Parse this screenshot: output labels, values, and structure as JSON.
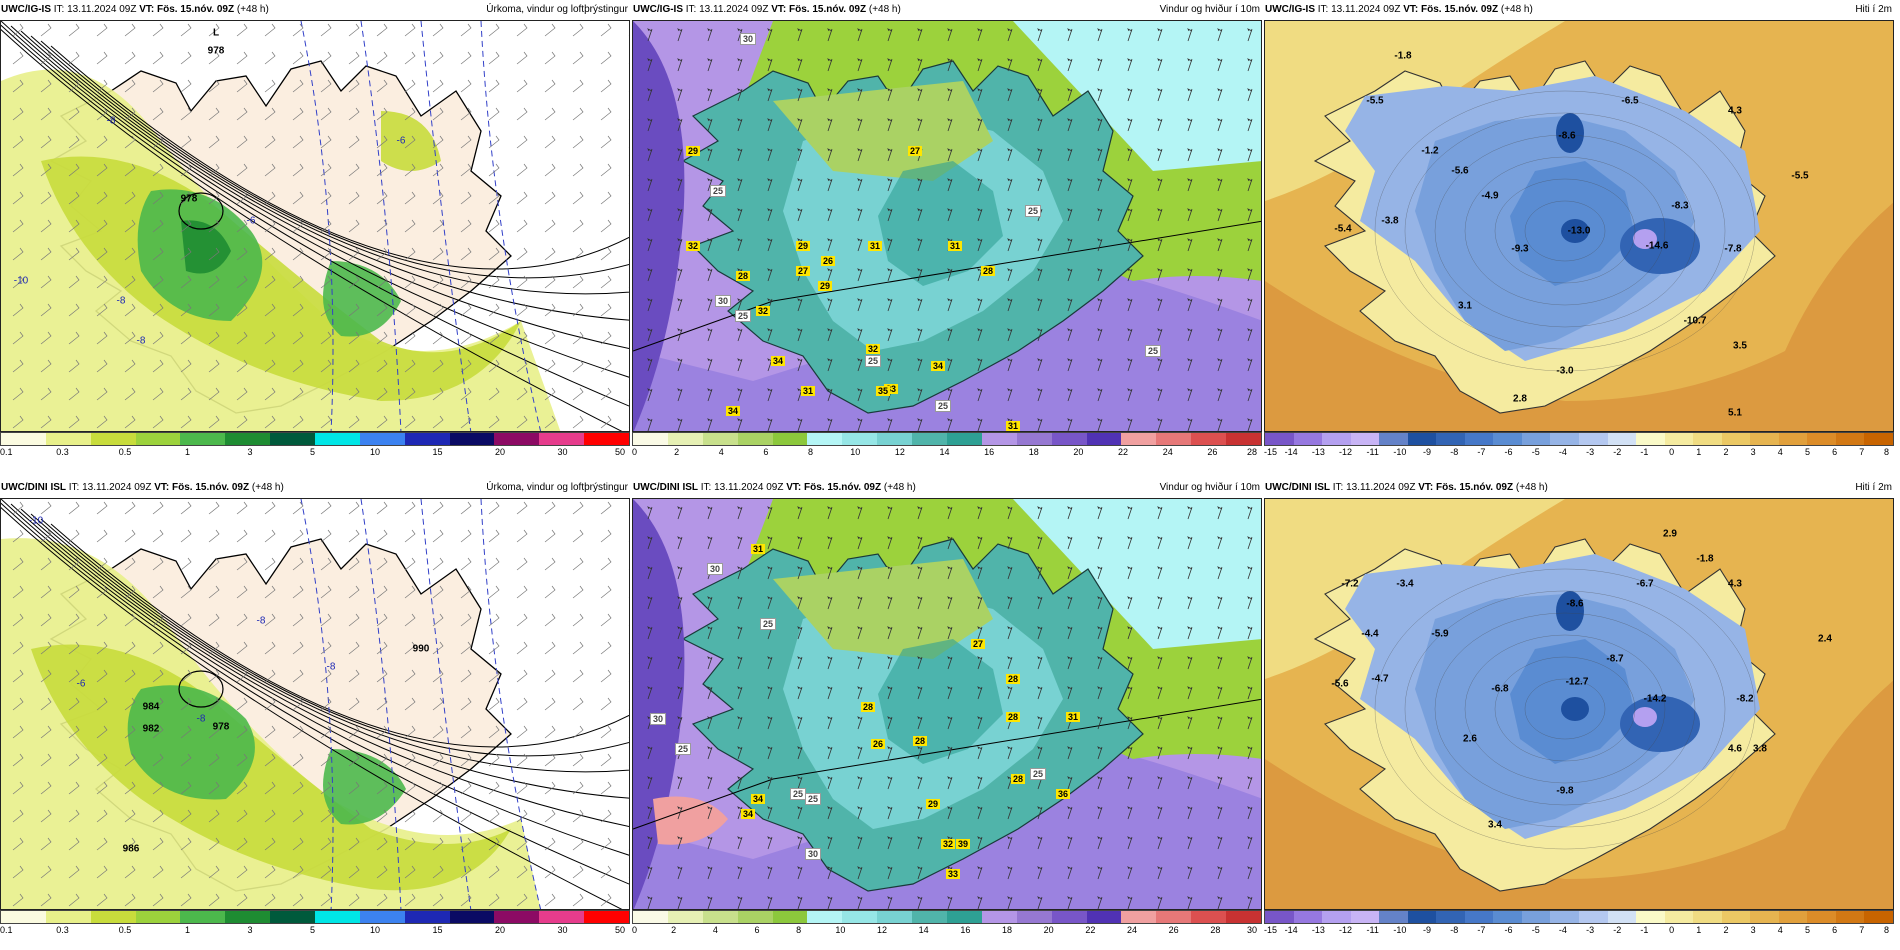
{
  "panels": [
    {
      "id": "p1",
      "model": "UWC/IG-IS",
      "it_label": "IT:",
      "it": "13.11.2024 09Z",
      "vt_label": "VT:",
      "vt": "Fös. 15.nóv. 09Z",
      "lead": "(+48 h)",
      "title": "Úrkoma, vindur og loftþrýstingur",
      "legend": {
        "colors": [
          "#fbfbe0",
          "#e8f08a",
          "#c8dc3c",
          "#9cd23c",
          "#4cb84c",
          "#1e8c32",
          "#005a3c",
          "#00e6e6",
          "#3c82f0",
          "#1e28b4",
          "#0a0a64",
          "#8c0a64",
          "#e63c8c",
          "#ff0000"
        ],
        "ticks": [
          "0.1",
          "0.3",
          "0.5",
          "1",
          "3",
          "5",
          "10",
          "15",
          "20",
          "30",
          "50"
        ]
      },
      "labels": [
        "L",
        "978",
        "978",
        "-8",
        "-8",
        "-8",
        "-6",
        "-6",
        "-10"
      ]
    },
    {
      "id": "p2",
      "model": "UWC/IG-IS",
      "it_label": "IT:",
      "it": "13.11.2024 09Z",
      "vt_label": "VT:",
      "vt": "Fös. 15.nóv. 09Z",
      "lead": "(+48 h)",
      "title": "Vindur og hviður í 10m",
      "legend": {
        "colors": [
          "#fafae6",
          "#e6f0b4",
          "#c8e08c",
          "#aad264",
          "#8cc83c",
          "#b4f5f5",
          "#96e6e6",
          "#78d2d2",
          "#50b4aa",
          "#2ea094",
          "#b496e6",
          "#9678d2",
          "#7856c8",
          "#5032b4",
          "#f0a0a0",
          "#e67878",
          "#dc5050",
          "#c83232"
        ],
        "ticks": [
          "0",
          "2",
          "4",
          "6",
          "8",
          "10",
          "12",
          "14",
          "16",
          "18",
          "20",
          "22",
          "24",
          "26",
          "28"
        ]
      },
      "labels_yellow": [
        "29",
        "32",
        "28",
        "32",
        "34",
        "31",
        "27",
        "29",
        "26",
        "29",
        "31",
        "31",
        "28",
        "32",
        "33",
        "35",
        "31",
        "34",
        "27",
        "34"
      ],
      "labels_white": [
        "30",
        "25",
        "30",
        "25",
        "25",
        "25",
        "25",
        "25"
      ]
    },
    {
      "id": "p3",
      "model": "UWC/IG-IS",
      "it_label": "IT:",
      "it": "13.11.2024 09Z",
      "vt_label": "VT:",
      "vt": "Fös. 15.nóv. 09Z",
      "lead": "(+48 h)",
      "title": "Hiti í 2m",
      "legend": {
        "colors": [
          "#7856c8",
          "#9678e0",
          "#b4a0f0",
          "#c8b4f5",
          "#6482c8",
          "#1e50a0",
          "#3264b4",
          "#4678c8",
          "#5a8cd2",
          "#78a0dc",
          "#96b4e6",
          "#b4c8f0",
          "#d2e1f5",
          "#fafac8",
          "#f5eba0",
          "#f0dc82",
          "#ebc864",
          "#e6b450",
          "#e1a03c",
          "#dc8c28",
          "#d27814",
          "#c86400"
        ],
        "ticks": [
          "-15",
          "-14",
          "-13",
          "-12",
          "-11",
          "-10",
          "-9",
          "-8",
          "-7",
          "-6",
          "-5",
          "-4",
          "-3",
          "-2",
          "-1",
          "0",
          "1",
          "2",
          "3",
          "4",
          "5",
          "6",
          "7",
          "8"
        ]
      },
      "labels": [
        "-1.8",
        "-5.5",
        "-6.5",
        "-8.6",
        "4.3",
        "-1.2",
        "-5.6",
        "-4.9",
        "-8.3",
        "-5.5",
        "-3.8",
        "-5.4",
        "-9.3",
        "-13.0",
        "-14.6",
        "-7.8",
        "3.1",
        "-10.7",
        "3.5",
        "-3.0",
        "2.8",
        "5.1"
      ]
    },
    {
      "id": "p4",
      "model": "UWC/DINI ISL",
      "it_label": "IT:",
      "it": "13.11.2024 09Z",
      "vt_label": "VT:",
      "vt": "Fös. 15.nóv. 09Z",
      "lead": "(+48 h)",
      "title": "Úrkoma, vindur og loftþrýstingur",
      "legend": {
        "colors": [
          "#fbfbe0",
          "#e8f08a",
          "#c8dc3c",
          "#9cd23c",
          "#4cb84c",
          "#1e8c32",
          "#005a3c",
          "#00e6e6",
          "#3c82f0",
          "#1e28b4",
          "#0a0a64",
          "#8c0a64",
          "#e63c8c",
          "#ff0000"
        ],
        "ticks": [
          "0.1",
          "0.3",
          "0.5",
          "1",
          "3",
          "5",
          "10",
          "15",
          "20",
          "30",
          "50"
        ]
      },
      "labels": [
        "978",
        "982",
        "984",
        "-8",
        "-8",
        "-8",
        "-6",
        "-10",
        "990",
        "986"
      ]
    },
    {
      "id": "p5",
      "model": "UWC/DINI ISL",
      "it_label": "IT:",
      "it": "13.11.2024 09Z",
      "vt_label": "VT:",
      "vt": "Fös. 15.nóv. 09Z",
      "lead": "(+48 h)",
      "title": "Vindur og hviður í 10m",
      "legend": {
        "colors": [
          "#fafae6",
          "#e6f0b4",
          "#c8e08c",
          "#aad264",
          "#8cc83c",
          "#b4f5f5",
          "#96e6e6",
          "#78d2d2",
          "#50b4aa",
          "#2ea094",
          "#b496e6",
          "#9678d2",
          "#7856c8",
          "#5032b4",
          "#f0a0a0",
          "#e67878",
          "#dc5050",
          "#c83232"
        ],
        "ticks": [
          "0",
          "2",
          "4",
          "6",
          "8",
          "10",
          "12",
          "14",
          "16",
          "18",
          "20",
          "22",
          "24",
          "26",
          "28",
          "30"
        ]
      },
      "labels_yellow": [
        "31",
        "27",
        "28",
        "28",
        "26",
        "28",
        "28",
        "31",
        "28",
        "34",
        "34",
        "36",
        "29",
        "32",
        "39",
        "33"
      ],
      "labels_white": [
        "30",
        "25",
        "30",
        "25",
        "25",
        "25",
        "30",
        "25"
      ]
    },
    {
      "id": "p6",
      "model": "UWC/DINI ISL",
      "it_label": "IT:",
      "it": "13.11.2024 09Z",
      "vt_label": "VT:",
      "vt": "Fös. 15.nóv. 09Z",
      "lead": "(+48 h)",
      "title": "Hiti í 2m",
      "legend": {
        "colors": [
          "#7856c8",
          "#9678e0",
          "#b4a0f0",
          "#c8b4f5",
          "#6482c8",
          "#1e50a0",
          "#3264b4",
          "#4678c8",
          "#5a8cd2",
          "#78a0dc",
          "#96b4e6",
          "#b4c8f0",
          "#d2e1f5",
          "#fafac8",
          "#f5eba0",
          "#f0dc82",
          "#ebc864",
          "#e6b450",
          "#e1a03c",
          "#dc8c28",
          "#d27814",
          "#c86400"
        ],
        "ticks": [
          "-15",
          "-14",
          "-13",
          "-12",
          "-11",
          "-10",
          "-9",
          "-8",
          "-7",
          "-6",
          "-5",
          "-4",
          "-3",
          "-2",
          "-1",
          "0",
          "1",
          "2",
          "3",
          "4",
          "5",
          "6",
          "7",
          "8"
        ]
      },
      "labels": [
        "2.9",
        "-1.8",
        "-7.2",
        "-3.4",
        "-6.7",
        "-8.6",
        "4.3",
        "-4.4",
        "-5.9",
        "-8.7",
        "2.4",
        "-5.6",
        "-4.7",
        "-6.8",
        "-12.7",
        "-14.2",
        "-8.2",
        "2.6",
        "4.6",
        "3.8",
        "-9.8",
        "3.4"
      ]
    }
  ]
}
